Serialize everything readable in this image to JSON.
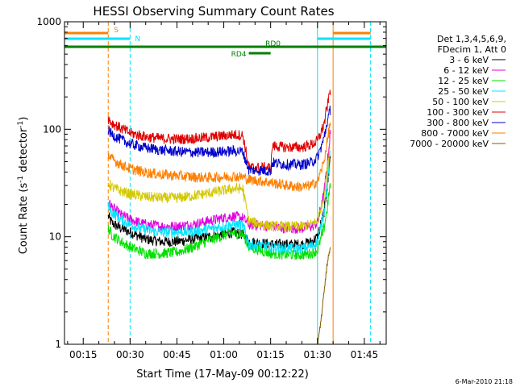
{
  "chart_data": {
    "type": "line",
    "title": "HESSI Observing Summary Count Rates",
    "xlabel": "Start Time (17-May-09 00:12:22)",
    "ylabel_main": "Count Rate (s",
    "ylabel_sup1": "-1",
    "ylabel_mid": " detector",
    "ylabel_sup2": "-1",
    "ylabel_end": ")",
    "yscale": "log",
    "ylim": [
      1,
      1000
    ],
    "xlim": [
      "00:09",
      "01:52"
    ],
    "xticks": [
      "00:15",
      "00:30",
      "00:45",
      "01:00",
      "01:15",
      "01:30",
      "01:45"
    ],
    "yticks": [
      "1",
      "10",
      "100",
      "1000"
    ],
    "timestamp": "6-Mar-2010 21:18",
    "legend": {
      "header1": "Det 1,3,4,5,6,9,",
      "header2": "FDecim 1, Att 0",
      "placement": "right"
    },
    "flags": [
      {
        "name": "S",
        "color": "#ff7f00",
        "start": "00:09",
        "end": "00:23"
      },
      {
        "name": "S",
        "color": "#ff7f00",
        "start": "01:35",
        "end": "01:47"
      },
      {
        "name": "N",
        "color": "#00e5ff",
        "start": "00:09",
        "end": "00:30"
      },
      {
        "name": "N",
        "color": "#00e5ff",
        "start": "01:30",
        "end": "01:47"
      },
      {
        "name": "RD0",
        "color": "#008000",
        "start": "00:09",
        "end": "01:52"
      },
      {
        "name": "RD4",
        "color": "#008000",
        "start": "01:08",
        "end": "01:15"
      }
    ],
    "vlines": [
      {
        "time": "00:23",
        "color": "#ff7f00",
        "style": "dashed"
      },
      {
        "time": "00:30",
        "color": "#00e5ff",
        "style": "dashed"
      },
      {
        "time": "01:30",
        "color": "#00e5ff",
        "style": "solid"
      },
      {
        "time": "01:35",
        "color": "#ff7f00",
        "style": "solid"
      },
      {
        "time": "01:47",
        "color": "#00e5ff",
        "style": "dashed"
      }
    ],
    "series": [
      {
        "name": "3 - 6 keV",
        "color": "#000000",
        "points": [
          [
            "00:23",
            15.5
          ],
          [
            "00:24",
            13.5
          ],
          [
            "00:27",
            12
          ],
          [
            "00:30",
            11
          ],
          [
            "00:35",
            9.5
          ],
          [
            "00:40",
            9
          ],
          [
            "00:45",
            9
          ],
          [
            "00:50",
            9.5
          ],
          [
            "00:55",
            10
          ],
          [
            "01:00",
            10.5
          ],
          [
            "01:03",
            11
          ],
          [
            "01:06",
            10.5
          ],
          [
            "01:08",
            9
          ],
          [
            "01:15",
            8.5
          ],
          [
            "01:20",
            8.5
          ],
          [
            "01:25",
            8.5
          ],
          [
            "01:28",
            9
          ],
          [
            "01:30",
            10
          ],
          [
            "01:32",
            17
          ],
          [
            "01:33",
            28
          ],
          [
            "01:34",
            55
          ]
        ]
      },
      {
        "name": "6 - 12 keV",
        "color": "#e000e0",
        "points": [
          [
            "00:23",
            21
          ],
          [
            "00:24",
            19
          ],
          [
            "00:27",
            16
          ],
          [
            "00:30",
            14.5
          ],
          [
            "00:35",
            13
          ],
          [
            "00:40",
            12.5
          ],
          [
            "00:45",
            12.5
          ],
          [
            "00:50",
            13
          ],
          [
            "00:55",
            14
          ],
          [
            "01:00",
            15
          ],
          [
            "01:03",
            15.5
          ],
          [
            "01:06",
            15
          ],
          [
            "01:08",
            13
          ],
          [
            "01:15",
            12.5
          ],
          [
            "01:20",
            12
          ],
          [
            "01:25",
            12
          ],
          [
            "01:28",
            12.5
          ],
          [
            "01:30",
            13.5
          ],
          [
            "01:32",
            25
          ],
          [
            "01:33",
            45
          ],
          [
            "01:34",
            90
          ]
        ]
      },
      {
        "name": "12 - 25 keV",
        "color": "#00e000",
        "points": [
          [
            "00:23",
            12
          ],
          [
            "00:24",
            10.5
          ],
          [
            "00:27",
            9
          ],
          [
            "00:30",
            8
          ],
          [
            "00:35",
            7
          ],
          [
            "00:40",
            7
          ],
          [
            "00:45",
            7.2
          ],
          [
            "00:50",
            8
          ],
          [
            "00:55",
            9.2
          ],
          [
            "01:00",
            10.3
          ],
          [
            "01:03",
            10.8
          ],
          [
            "01:06",
            10.5
          ],
          [
            "01:08",
            8
          ],
          [
            "01:15",
            7
          ],
          [
            "01:20",
            6.8
          ],
          [
            "01:25",
            6.8
          ],
          [
            "01:28",
            7
          ],
          [
            "01:30",
            7.5
          ],
          [
            "01:32",
            12
          ],
          [
            "01:33",
            18
          ],
          [
            "01:34",
            30
          ]
        ]
      },
      {
        "name": "25 - 50 keV",
        "color": "#00e5ff",
        "points": [
          [
            "00:23",
            19
          ],
          [
            "00:24",
            17
          ],
          [
            "00:27",
            14.5
          ],
          [
            "00:30",
            13
          ],
          [
            "00:35",
            11.5
          ],
          [
            "00:40",
            11
          ],
          [
            "00:45",
            11
          ],
          [
            "00:50",
            11.2
          ],
          [
            "00:55",
            11.8
          ],
          [
            "01:00",
            12.5
          ],
          [
            "01:03",
            13
          ],
          [
            "01:06",
            12.8
          ],
          [
            "01:08",
            8.5
          ],
          [
            "01:15",
            8
          ],
          [
            "01:20",
            7.8
          ],
          [
            "01:25",
            7.8
          ],
          [
            "01:28",
            8.2
          ],
          [
            "01:30",
            9
          ],
          [
            "01:32",
            17
          ],
          [
            "01:33",
            30
          ],
          [
            "01:34",
            60
          ]
        ]
      },
      {
        "name": "50 - 100 keV",
        "color": "#d4c800",
        "points": [
          [
            "00:23",
            32
          ],
          [
            "00:24",
            29
          ],
          [
            "00:27",
            26.5
          ],
          [
            "00:30",
            25
          ],
          [
            "00:35",
            23.5
          ],
          [
            "00:40",
            23
          ],
          [
            "00:45",
            23
          ],
          [
            "00:50",
            24
          ],
          [
            "00:55",
            25.5
          ],
          [
            "01:00",
            27
          ],
          [
            "01:03",
            28
          ],
          [
            "01:06",
            28
          ],
          [
            "01:08",
            14
          ],
          [
            "01:15",
            12.5
          ],
          [
            "01:20",
            12.5
          ],
          [
            "01:25",
            12.5
          ],
          [
            "01:28",
            13
          ],
          [
            "01:30",
            14
          ],
          [
            "01:32",
            24
          ],
          [
            "01:33",
            40
          ],
          [
            "01:34",
            75
          ]
        ]
      },
      {
        "name": "100 - 300 keV",
        "color": "#e00000",
        "points": [
          [
            "00:23",
            125
          ],
          [
            "00:24",
            115
          ],
          [
            "00:27",
            102
          ],
          [
            "00:30",
            92
          ],
          [
            "00:35",
            85
          ],
          [
            "00:40",
            82
          ],
          [
            "00:45",
            81
          ],
          [
            "00:50",
            82
          ],
          [
            "00:55",
            84
          ],
          [
            "01:00",
            87
          ],
          [
            "01:03",
            89
          ],
          [
            "01:06",
            88
          ],
          [
            "01:08",
            44
          ],
          [
            "01:15",
            44
          ],
          [
            "01:15.5",
            70
          ],
          [
            "01:20",
            68
          ],
          [
            "01:25",
            68
          ],
          [
            "01:28",
            72
          ],
          [
            "01:30",
            78
          ],
          [
            "01:32",
            110
          ],
          [
            "01:33",
            160
          ],
          [
            "01:34",
            230
          ]
        ]
      },
      {
        "name": "300 - 800 keV",
        "color": "#0000cc",
        "points": [
          [
            "00:23",
            97
          ],
          [
            "00:24",
            90
          ],
          [
            "00:27",
            80
          ],
          [
            "00:30",
            73
          ],
          [
            "00:35",
            67
          ],
          [
            "00:40",
            64
          ],
          [
            "00:45",
            62
          ],
          [
            "00:50",
            61
          ],
          [
            "00:55",
            61
          ],
          [
            "01:00",
            62
          ],
          [
            "01:03",
            63
          ],
          [
            "01:06",
            62
          ],
          [
            "01:08",
            42
          ],
          [
            "01:15",
            41
          ],
          [
            "01:15.5",
            49
          ],
          [
            "01:20",
            47
          ],
          [
            "01:25",
            47
          ],
          [
            "01:28",
            49
          ],
          [
            "01:30",
            55
          ],
          [
            "01:32",
            82
          ],
          [
            "01:33",
            115
          ],
          [
            "01:34",
            150
          ]
        ]
      },
      {
        "name": "800 - 7000 keV",
        "color": "#ff7f00",
        "points": [
          [
            "00:23",
            58
          ],
          [
            "00:24",
            53
          ],
          [
            "00:27",
            47
          ],
          [
            "00:30",
            43
          ],
          [
            "00:35",
            39.5
          ],
          [
            "00:40",
            38
          ],
          [
            "00:45",
            37
          ],
          [
            "00:50",
            36
          ],
          [
            "00:55",
            35.5
          ],
          [
            "01:00",
            36
          ],
          [
            "01:03",
            36.5
          ],
          [
            "01:06",
            36
          ],
          [
            "01:08",
            34
          ],
          [
            "01:15",
            32
          ],
          [
            "01:20",
            30
          ],
          [
            "01:25",
            29
          ],
          [
            "01:28",
            30
          ],
          [
            "01:30",
            33
          ],
          [
            "01:32",
            50
          ],
          [
            "01:33",
            75
          ],
          [
            "01:34",
            115
          ]
        ]
      },
      {
        "name": "7000 - 20000 keV",
        "color": "#806000",
        "points": [
          [
            "01:30",
            1.0
          ],
          [
            "01:31",
            1.6
          ],
          [
            "01:32",
            3.0
          ],
          [
            "01:33",
            5.5
          ],
          [
            "01:34",
            8.0
          ]
        ]
      }
    ]
  }
}
